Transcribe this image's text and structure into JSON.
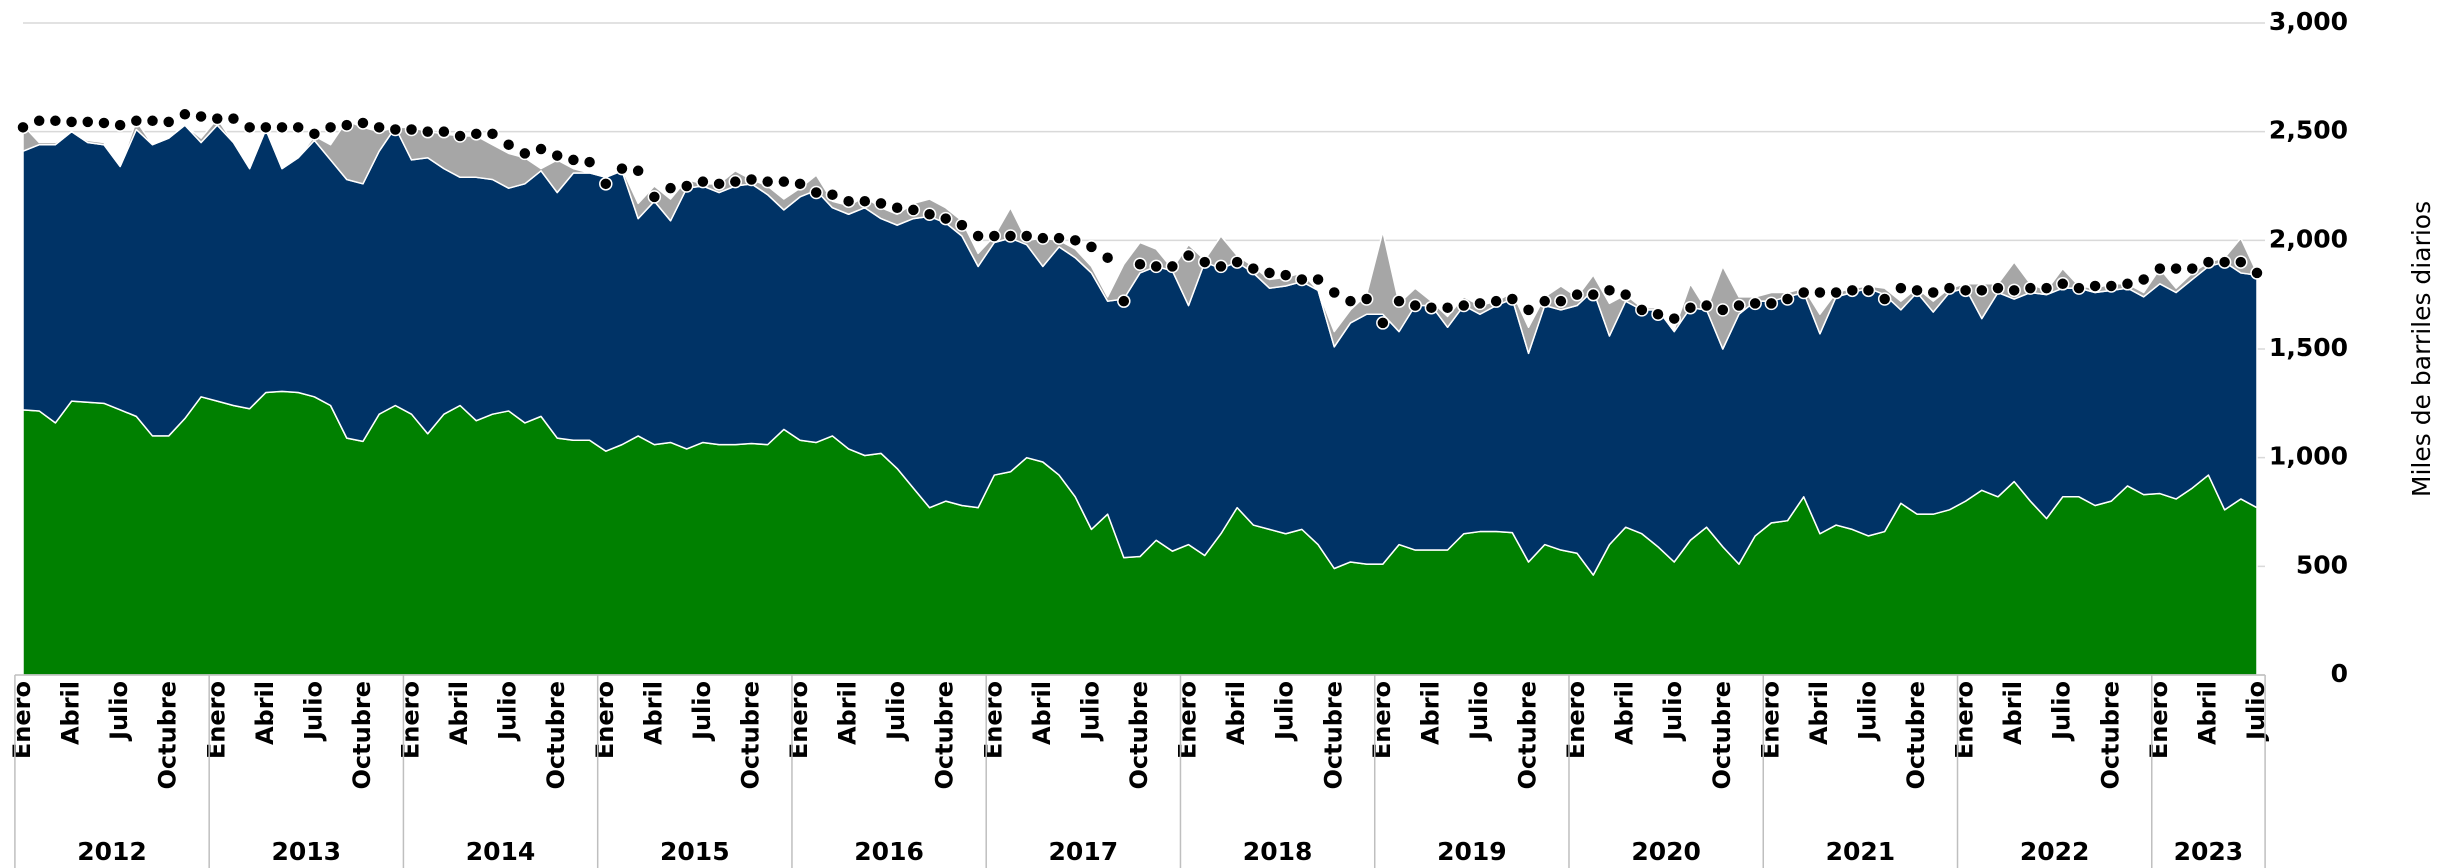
{
  "chart_data": {
    "type": "area",
    "ylabel": "Miles de barriles diarios",
    "ylim": [
      0,
      3000
    ],
    "yticks": [
      0,
      500,
      {
        "value": 1000,
        "label": "1,000"
      },
      {
        "value": 1500,
        "label": "1,500"
      },
      {
        "value": 2000,
        "label": "2,000"
      },
      {
        "value": 2500,
        "label": "2,500"
      },
      {
        "value": 3000,
        "label": "3,000"
      }
    ],
    "grid": true,
    "categories": [
      "Enero",
      null,
      null,
      "Abril",
      null,
      null,
      "Julio",
      null,
      null,
      "Octubre",
      null,
      null,
      "Enero",
      null,
      null,
      "Abril",
      null,
      null,
      "Julio",
      null,
      null,
      "Octubre",
      null,
      null,
      "Enero",
      null,
      null,
      "Abril",
      null,
      null,
      "Julio",
      null,
      null,
      "Octubre",
      null,
      null,
      "Enero",
      null,
      null,
      "Abril",
      null,
      null,
      "Julio",
      null,
      null,
      "Octubre",
      null,
      null,
      "Enero",
      null,
      null,
      "Abril",
      null,
      null,
      "Julio",
      null,
      null,
      "Octubre",
      null,
      null,
      "Enero",
      null,
      null,
      "Abril",
      null,
      null,
      "Julio",
      null,
      null,
      "Octubre",
      null,
      null,
      "Enero",
      null,
      null,
      "Abril",
      null,
      null,
      "Julio",
      null,
      null,
      "Octubre",
      null,
      null,
      "Enero",
      null,
      null,
      "Abril",
      null,
      null,
      "Julio",
      null,
      null,
      "Octubre",
      null,
      null,
      "Enero",
      null,
      null,
      "Abril",
      null,
      null,
      "Julio",
      null,
      null,
      "Octubre",
      null,
      null,
      "Enero",
      null,
      null,
      "Abril",
      null,
      null,
      "Julio",
      null,
      null,
      "Octubre",
      null,
      null,
      "Enero",
      null,
      null,
      "Abril",
      null,
      null,
      "Julio",
      null,
      null,
      "Octubre",
      null,
      null,
      "Enero",
      null,
      null,
      "Abril",
      null,
      null,
      "Julio"
    ],
    "years": [
      "2012",
      "2013",
      "2014",
      "2015",
      "2016",
      "2017",
      "2018",
      "2019",
      "2020",
      "2021",
      "2022",
      "2023"
    ],
    "series": [
      {
        "color": "#008000",
        "values": [
          1220,
          1215,
          1160,
          1260,
          1255,
          1250,
          1220,
          1190,
          1100,
          1100,
          1180,
          1280,
          1260,
          1240,
          1225,
          1300,
          1305,
          1300,
          1280,
          1240,
          1090,
          1075,
          1200,
          1240,
          1200,
          1110,
          1200,
          1240,
          1170,
          1200,
          1215,
          1160,
          1190,
          1090,
          1080,
          1080,
          1030,
          1060,
          1100,
          1060,
          1070,
          1040,
          1070,
          1060,
          1060,
          1065,
          1060,
          1130,
          1080,
          1070,
          1100,
          1040,
          1010,
          1020,
          950,
          860,
          770,
          800,
          780,
          770,
          920,
          935,
          1000,
          980,
          920,
          820,
          670,
          740,
          540,
          545,
          620,
          570,
          600,
          550,
          650,
          770,
          690,
          670,
          650,
          670,
          600,
          490,
          520,
          510,
          510,
          600,
          575,
          575,
          575,
          650,
          660,
          660,
          655,
          520,
          600,
          575,
          560,
          460,
          600,
          680,
          650,
          590,
          520,
          620,
          680,
          590,
          510,
          640,
          700,
          710,
          820,
          650,
          690,
          670,
          640,
          660,
          790,
          740,
          740,
          760,
          800,
          850,
          820,
          890,
          800,
          720,
          820,
          820,
          780,
          800,
          870,
          830,
          835,
          810,
          860,
          920,
          760,
          810,
          770
        ]
      },
      {
        "color": "#003366",
        "values": [
          1190,
          1225,
          1280,
          1240,
          1195,
          1190,
          1120,
          1320,
          1340,
          1370,
          1350,
          1170,
          1270,
          1210,
          1105,
          1210,
          1025,
          1080,
          1180,
          1130,
          1190,
          1185,
          1210,
          1280,
          1170,
          1270,
          1130,
          1050,
          1120,
          1080,
          1025,
          1100,
          1130,
          1130,
          1230,
          1230,
          1260,
          1260,
          1000,
          1120,
          1020,
          1200,
          1180,
          1160,
          1190,
          1195,
          1150,
          1010,
          1120,
          1160,
          1050,
          1080,
          1140,
          1080,
          1120,
          1240,
          1340,
          1280,
          1240,
          1110,
          1070,
          1075,
          980,
          900,
          1050,
          1100,
          1180,
          980,
          1190,
          1305,
          1260,
          1290,
          1100,
          1350,
          1220,
          1130,
          1160,
          1110,
          1140,
          1140,
          1170,
          1020,
          1100,
          1150,
          1150,
          980,
          1125,
          1125,
          1025,
          1050,
          1000,
          1040,
          1075,
          960,
          1100,
          1105,
          1140,
          1310,
          960,
          1040,
          1030,
          1090,
          1060,
          1070,
          1000,
          910,
          1150,
          1080,
          1020,
          1030,
          940,
          920,
          1050,
          1090,
          1140,
          1090,
          890,
          1020,
          930,
          1000,
          980,
          790,
          940,
          840,
          960,
          1030,
          960,
          960,
          980,
          970,
          910,
          910,
          965,
          950,
          960,
          960,
          1140,
          1040,
          1070
        ]
      },
      {
        "color": "#a6a6a6",
        "values": [
          120,
          10,
          10,
          0,
          10,
          10,
          0,
          40,
          0,
          0,
          0,
          20,
          30,
          0,
          0,
          0,
          0,
          0,
          20,
          70,
          270,
          260,
          90,
          0,
          150,
          120,
          160,
          190,
          190,
          160,
          160,
          120,
          10,
          150,
          20,
          0,
          0,
          10,
          70,
          70,
          100,
          40,
          10,
          40,
          70,
          20,
          40,
          50,
          40,
          70,
          30,
          40,
          50,
          50,
          50,
          70,
          80,
          70,
          70,
          60,
          30,
          140,
          20,
          130,
          30,
          40,
          30,
          20,
          160,
          140,
          80,
          10,
          280,
          10,
          150,
          30,
          30,
          40,
          40,
          40,
          0,
          70,
          60,
          90,
          380,
          130,
          80,
          20,
          50,
          40,
          40,
          20,
          30,
          120,
          40,
          110,
          40,
          70,
          150,
          30,
          10,
          10,
          10,
          110,
          0,
          380,
          80,
          20,
          40,
          20,
          20,
          90,
          20,
          20,
          10,
          30,
          40,
          20,
          50,
          20,
          20,
          160,
          40,
          170,
          40,
          20,
          90,
          10,
          20,
          30,
          20,
          20,
          70,
          20,
          30,
          20,
          20,
          160,
          10
        ]
      }
    ],
    "total": {
      "color": "#000000",
      "values": [
        2520,
        2550,
        2550,
        2545,
        2545,
        2540,
        2530,
        2550,
        2550,
        2545,
        2580,
        2570,
        2560,
        2560,
        2520,
        2520,
        2520,
        2520,
        2490,
        2520,
        2530,
        2540,
        2520,
        2510,
        2510,
        2500,
        2500,
        2480,
        2490,
        2490,
        2440,
        2400,
        2420,
        2390,
        2370,
        2360,
        2260,
        2330,
        2320,
        2200,
        2240,
        2250,
        2270,
        2260,
        2270,
        2280,
        2270,
        2270,
        2260,
        2220,
        2210,
        2180,
        2180,
        2170,
        2150,
        2140,
        2120,
        2100,
        2070,
        2020,
        2020,
        2020,
        2020,
        2010,
        2010,
        2000,
        1970,
        1920,
        1720,
        1890,
        1880,
        1880,
        1930,
        1900,
        1880,
        1900,
        1870,
        1850,
        1840,
        1820,
        1820,
        1760,
        1720,
        1730,
        1620,
        1720,
        1700,
        1690,
        1690,
        1700,
        1710,
        1720,
        1730,
        1680,
        1720,
        1720,
        1750,
        1750,
        1770,
        1750,
        1680,
        1660,
        1640,
        1690,
        1700,
        1680,
        1700,
        1710,
        1710,
        1730,
        1760,
        1760,
        1760,
        1770,
        1770,
        1730,
        1780,
        1770,
        1760,
        1780,
        1770,
        1770,
        1780,
        1770,
        1780,
        1780,
        1800,
        1780,
        1790,
        1790,
        1800,
        1820,
        1870,
        1870,
        1870,
        1900,
        1900,
        1900,
        1850
      ]
    }
  }
}
